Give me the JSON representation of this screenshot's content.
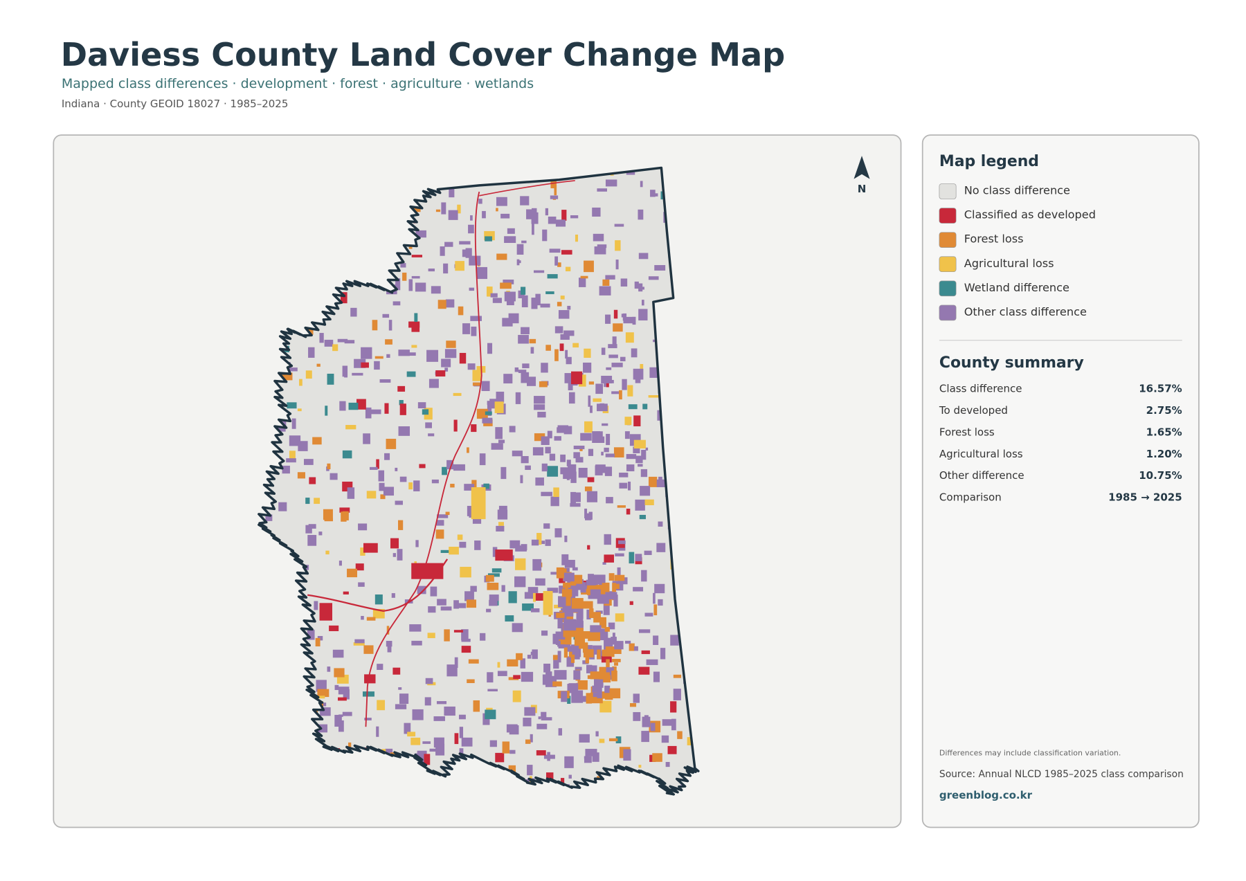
{
  "header": {
    "title": "Daviess County Land Cover Change Map",
    "subtitle": "Mapped class differences · development · forest · agriculture · wetlands",
    "meta": "Indiana · County GEOID 18027 · 1985–2025"
  },
  "map": {
    "north_label": "N"
  },
  "legend": {
    "title": "Map legend",
    "items": [
      {
        "label": "No class difference",
        "color": "#e2e2df"
      },
      {
        "label": "Classified as developed",
        "color": "#c8283a"
      },
      {
        "label": "Forest loss",
        "color": "#e08a35"
      },
      {
        "label": "Agricultural loss",
        "color": "#f0c24a"
      },
      {
        "label": "Wetland difference",
        "color": "#3b8a8f"
      },
      {
        "label": "Other class difference",
        "color": "#9478b0"
      }
    ]
  },
  "summary": {
    "title": "County summary",
    "rows": [
      {
        "label": "Class difference",
        "value": "16.57%"
      },
      {
        "label": "To developed",
        "value": "2.75%"
      },
      {
        "label": "Forest loss",
        "value": "1.65%"
      },
      {
        "label": "Agricultural loss",
        "value": "1.20%"
      },
      {
        "label": "Other difference",
        "value": "10.75%"
      },
      {
        "label": "Comparison",
        "value": "1985 → 2025"
      }
    ]
  },
  "footer": {
    "note": "Differences may include classification variation.",
    "source": "Source: Annual NLCD 1985–2025 class comparison",
    "site": "greenblog.co.kr"
  }
}
